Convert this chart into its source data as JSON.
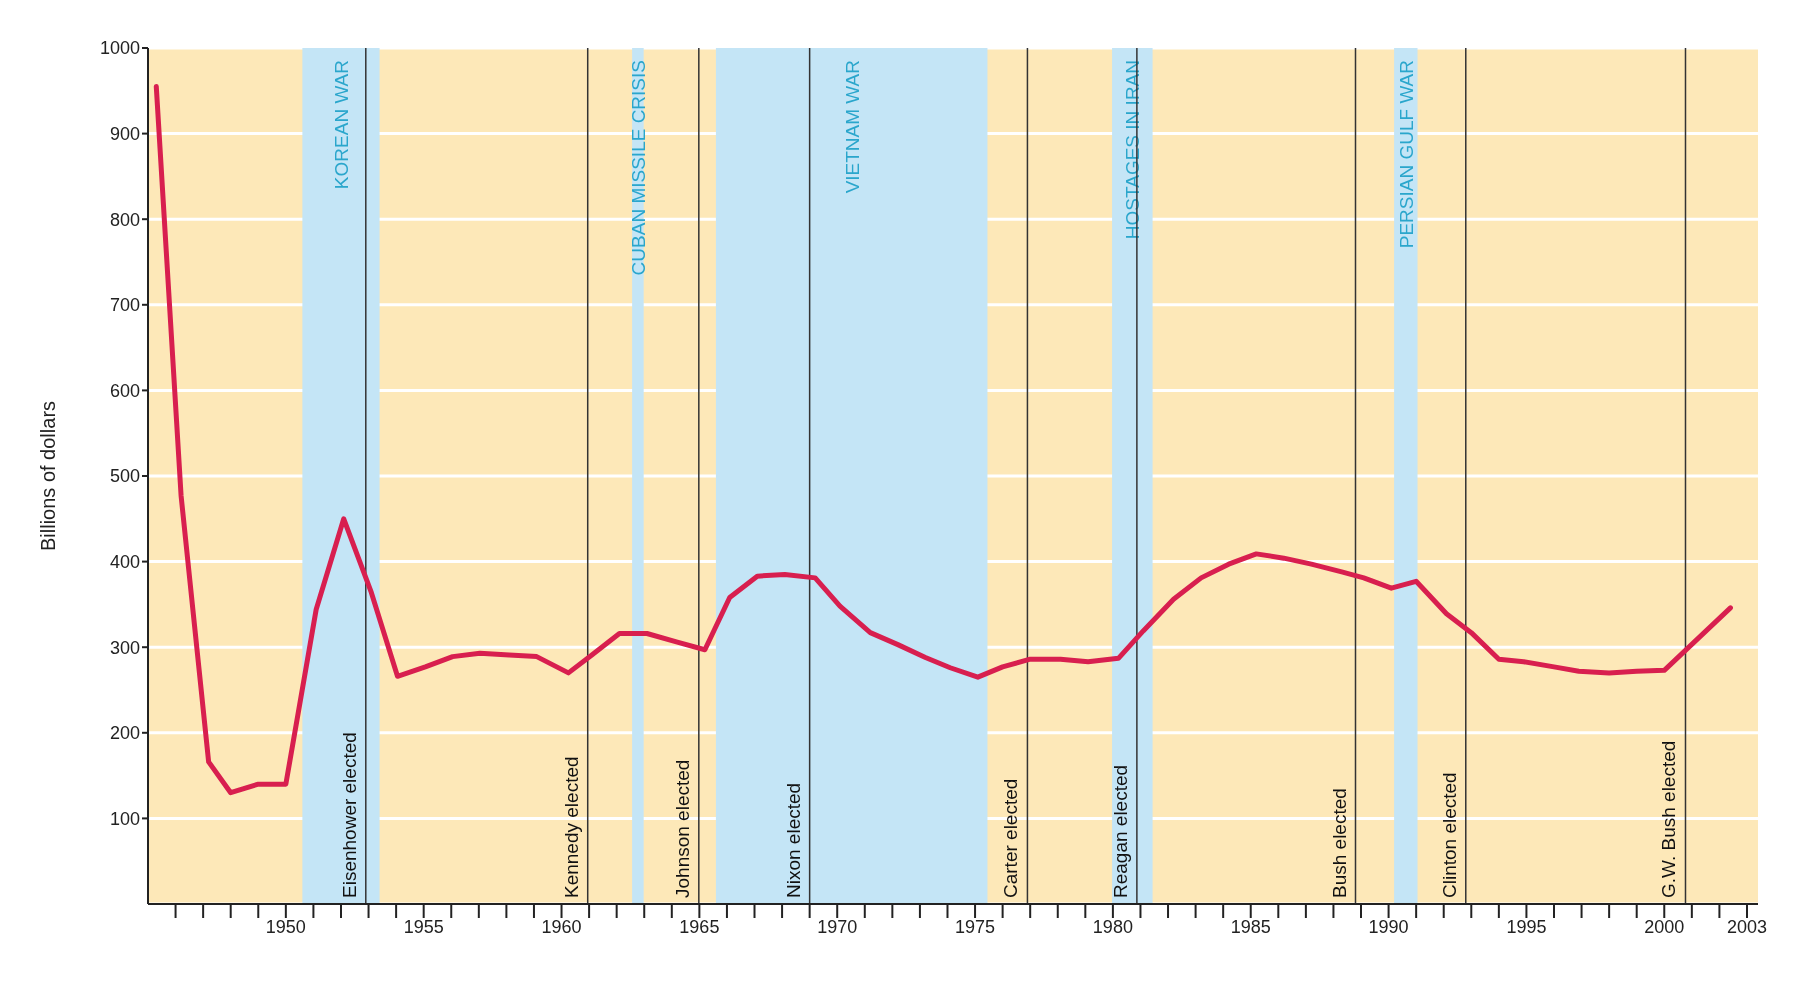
{
  "chart_data": {
    "type": "line",
    "ylabel": "Billions of dollars",
    "series": [
      {
        "color": "#d81f4f",
        "x": [
          1945.3,
          1946.2,
          1947.2,
          1948,
          1949,
          1950,
          1951.1,
          1952.1,
          1953.1,
          1954.05,
          1955.06,
          1956.05,
          1957.04,
          1958.1,
          1959.1,
          1960.25,
          1961.1,
          1962.1,
          1963.1,
          1964.2,
          1965.2,
          1966.1,
          1967.1,
          1968.1,
          1969.2,
          1970.1,
          1971.2,
          1972.2,
          1973.2,
          1974.1,
          1975.1,
          1976,
          1977,
          1978.1,
          1979.1,
          1980.2,
          1981.1,
          1982.2,
          1983.2,
          1984.2,
          1985.2,
          1986.2,
          1987.2,
          1988.3,
          1989.1,
          1990.1,
          1991,
          1992.1,
          1993,
          1994,
          1994.9,
          1996,
          1996.9,
          1998,
          1999,
          2000,
          2002.4
        ],
        "values": [
          955,
          477,
          166,
          130,
          140,
          140,
          344,
          450,
          364,
          266,
          277,
          289,
          293,
          291,
          289,
          270,
          291,
          316,
          316,
          306,
          297,
          358,
          383,
          385,
          381,
          348,
          317,
          303,
          288,
          276,
          265,
          277,
          286,
          286,
          283,
          287,
          319,
          356,
          381,
          397,
          409,
          404,
          397,
          388,
          381,
          369,
          377,
          339,
          317,
          286,
          283,
          277,
          272,
          270,
          272,
          273,
          346
        ]
      }
    ],
    "xlim": [
      1945,
      2003.4
    ],
    "ylim": [
      0,
      1000
    ],
    "xticks": [
      {
        "value": 1946,
        "label": null
      },
      {
        "value": 1947,
        "label": null
      },
      {
        "value": 1948,
        "label": null
      },
      {
        "value": 1949,
        "label": null
      },
      1950,
      {
        "value": 1951,
        "label": null
      },
      {
        "value": 1952,
        "label": null
      },
      {
        "value": 1953,
        "label": null
      },
      {
        "value": 1954,
        "label": null
      },
      1955,
      {
        "value": 1956,
        "label": null
      },
      {
        "value": 1957,
        "label": null
      },
      {
        "value": 1958,
        "label": null
      },
      {
        "value": 1959,
        "label": null
      },
      1960,
      {
        "value": 1961,
        "label": null
      },
      {
        "value": 1962,
        "label": null
      },
      {
        "value": 1963,
        "label": null
      },
      {
        "value": 1964,
        "label": null
      },
      1965,
      {
        "value": 1966,
        "label": null
      },
      {
        "value": 1967,
        "label": null
      },
      {
        "value": 1968,
        "label": null
      },
      {
        "value": 1969,
        "label": null
      },
      1970,
      {
        "value": 1971,
        "label": null
      },
      {
        "value": 1972,
        "label": null
      },
      {
        "value": 1973,
        "label": null
      },
      {
        "value": 1974,
        "label": null
      },
      1975,
      {
        "value": 1976,
        "label": null
      },
      {
        "value": 1977,
        "label": null
      },
      {
        "value": 1978,
        "label": null
      },
      {
        "value": 1979,
        "label": null
      },
      1980,
      {
        "value": 1981,
        "label": null
      },
      {
        "value": 1982,
        "label": null
      },
      {
        "value": 1983,
        "label": null
      },
      {
        "value": 1984,
        "label": null
      },
      1985,
      {
        "value": 1986,
        "label": null
      },
      {
        "value": 1987,
        "label": null
      },
      {
        "value": 1988,
        "label": null
      },
      {
        "value": 1989,
        "label": null
      },
      1990,
      {
        "value": 1991,
        "label": null
      },
      {
        "value": 1992,
        "label": null
      },
      {
        "value": 1993,
        "label": null
      },
      {
        "value": 1994,
        "label": null
      },
      1995,
      {
        "value": 1996,
        "label": null
      },
      {
        "value": 1997,
        "label": null
      },
      {
        "value": 1998,
        "label": null
      },
      {
        "value": 1999,
        "label": null
      },
      2000,
      {
        "value": 2001,
        "label": null
      },
      {
        "value": 2002,
        "label": null
      },
      2003
    ],
    "yticks": [
      100,
      200,
      300,
      400,
      500,
      600,
      700,
      800,
      900,
      1000
    ],
    "grid": "y",
    "marker": "none",
    "line_style": "solid",
    "bands": [
      {
        "axis": "x",
        "from": 1950.6,
        "to": 1953.4,
        "label": "KOREAN WAR",
        "color": "#c4e5f6"
      },
      {
        "axis": "x",
        "from": 1962.56,
        "to": 1962.98,
        "label": "CUBAN MISSILE CRISIS",
        "color": "#c4e5f6"
      },
      {
        "axis": "x",
        "from": 1965.6,
        "to": 1975.45,
        "label": "VIETNAM WAR",
        "color": "#c4e5f6"
      },
      {
        "axis": "x",
        "from": 1979.97,
        "to": 1981.44,
        "label": "HOSTAGES IN IRAN",
        "color": "#c4e5f6"
      },
      {
        "axis": "x",
        "from": 1990.2,
        "to": 1991.05,
        "label": "PERSIAN GULF WAR",
        "color": "#c4e5f6"
      }
    ],
    "ref_lines": [
      {
        "axis": "x",
        "value": 1952.9,
        "label": "Eisenhower elected",
        "color": "#333333"
      },
      {
        "axis": "x",
        "value": 1960.95,
        "label": "Kennedy elected",
        "color": "#333333"
      },
      {
        "axis": "x",
        "value": 1964.98,
        "label": "Johnson elected",
        "color": "#333333"
      },
      {
        "axis": "x",
        "value": 1969.0,
        "label": "Nixon elected",
        "color": "#333333"
      },
      {
        "axis": "x",
        "value": 1976.9,
        "label": "Carter elected",
        "color": "#333333"
      },
      {
        "axis": "x",
        "value": 1980.87,
        "label": "Reagan elected",
        "color": "#333333"
      },
      {
        "axis": "x",
        "value": 1988.8,
        "label": "Bush elected",
        "color": "#333333"
      },
      {
        "axis": "x",
        "value": 1992.8,
        "label": "Clinton elected",
        "color": "#333333"
      },
      {
        "axis": "x",
        "value": 2000.77,
        "label": "G.W. Bush elected",
        "color": "#333333"
      }
    ]
  }
}
